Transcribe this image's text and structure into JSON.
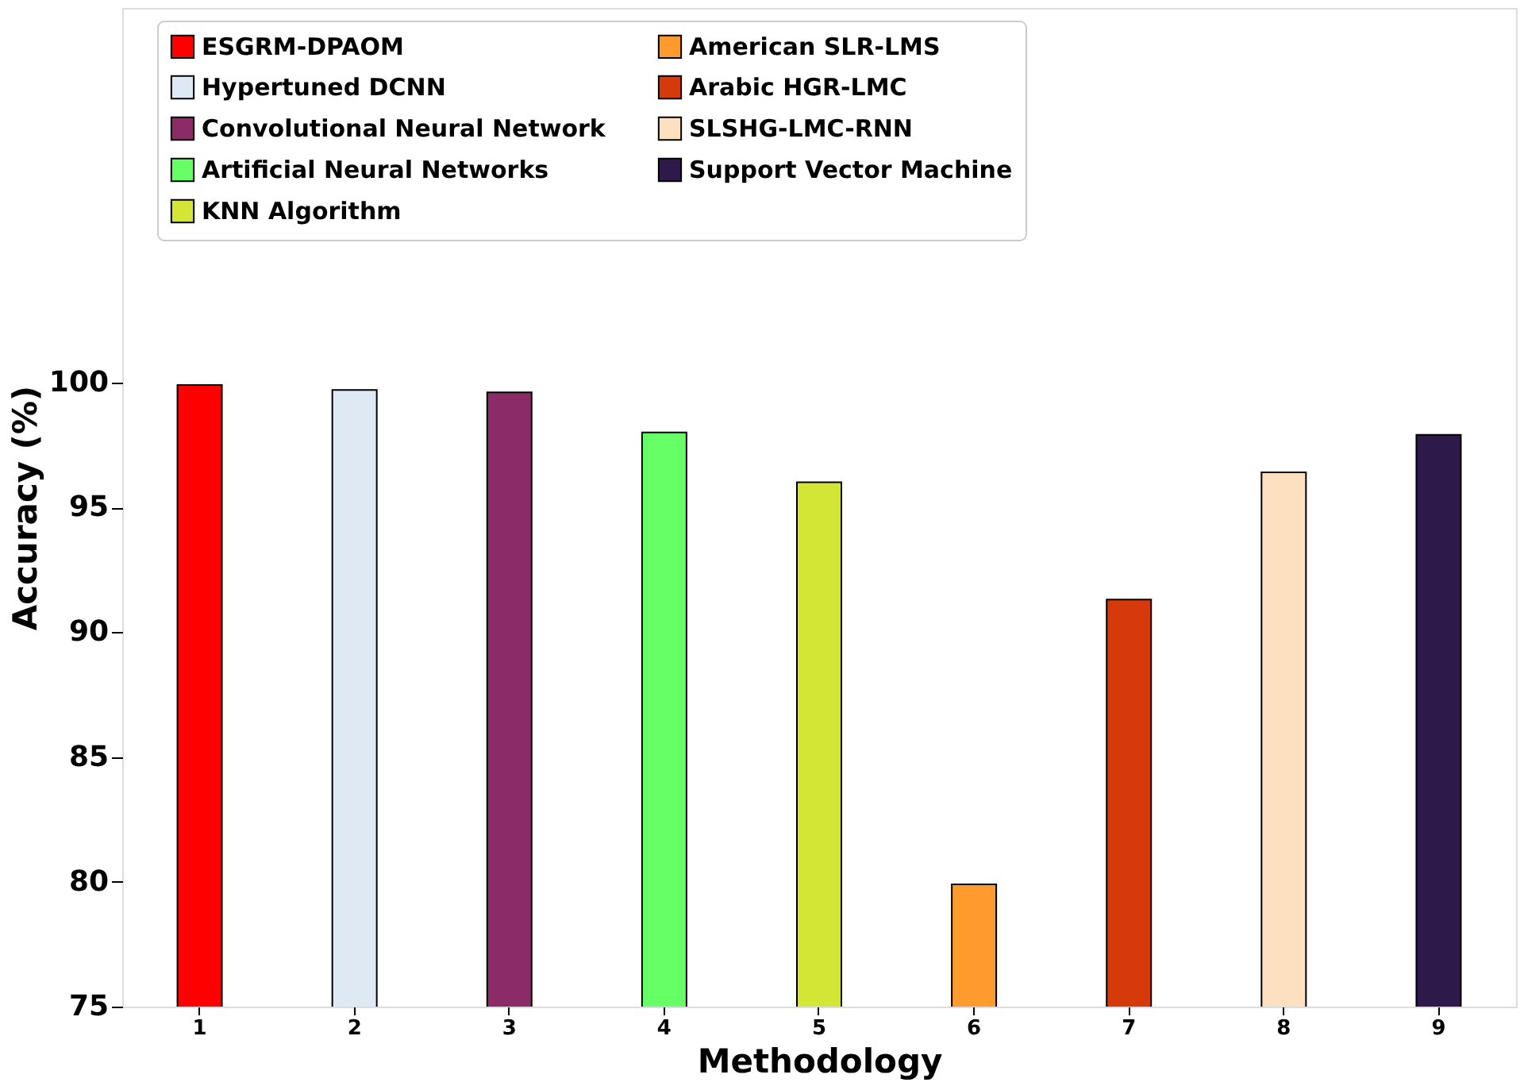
{
  "chart_data": {
    "type": "bar",
    "xlabel": "Methodology",
    "ylabel": "Accuracy (%)",
    "categories": [
      "1",
      "2",
      "3",
      "4",
      "5",
      "6",
      "7",
      "8",
      "9"
    ],
    "series": [
      {
        "name": "ESGRM-DPAOM",
        "color": "#ff0000",
        "values": [
          99.9,
          null,
          null,
          null,
          null,
          null,
          null,
          null,
          null
        ]
      },
      {
        "name": "Hypertuned DCNN",
        "color": "#dfe9f3",
        "values": [
          null,
          99.7,
          null,
          null,
          null,
          null,
          null,
          null,
          null
        ]
      },
      {
        "name": "Convolutional Neural Network",
        "color": "#8b2c66",
        "values": [
          null,
          null,
          99.6,
          null,
          null,
          null,
          null,
          null,
          null
        ]
      },
      {
        "name": "Artificial Neural Networks",
        "color": "#66ff66",
        "values": [
          null,
          null,
          null,
          98.0,
          null,
          null,
          null,
          null,
          null
        ]
      },
      {
        "name": "KNN Algorithm",
        "color": "#d4e635",
        "values": [
          null,
          null,
          null,
          null,
          96.0,
          null,
          null,
          null,
          null
        ]
      },
      {
        "name": "American SLR-LMS",
        "color": "#ff9a2e",
        "values": [
          null,
          null,
          null,
          null,
          null,
          79.9,
          null,
          null,
          null
        ]
      },
      {
        "name": "Arabic HGR-LMC",
        "color": "#d63a0a",
        "values": [
          null,
          null,
          null,
          null,
          null,
          null,
          91.3,
          null,
          null
        ]
      },
      {
        "name": "SLSHG-LMC-RNN",
        "color": "#fde0c0",
        "values": [
          null,
          null,
          null,
          null,
          null,
          null,
          null,
          96.4,
          null
        ]
      },
      {
        "name": "Support Vector Machine",
        "color": "#2e1a4a",
        "values": [
          null,
          null,
          null,
          null,
          null,
          null,
          null,
          null,
          97.9
        ]
      }
    ],
    "ylim": [
      75,
      115
    ],
    "yticks": [
      75,
      80,
      85,
      90,
      95,
      100
    ],
    "grid": false,
    "legend": "top"
  }
}
